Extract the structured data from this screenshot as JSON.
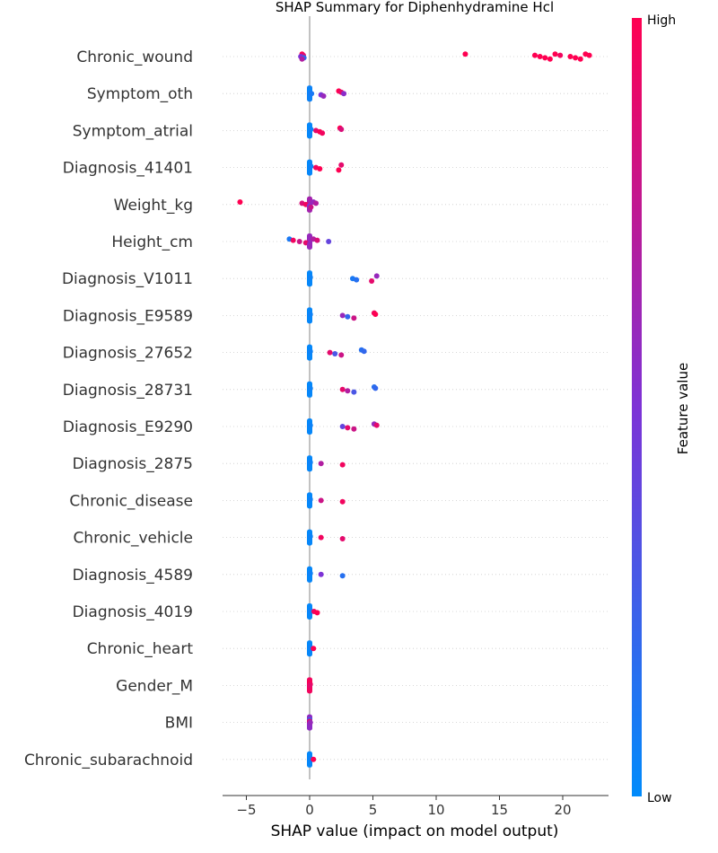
{
  "chart_data": {
    "type": "scatter",
    "subtype": "shap-beeswarm",
    "title": "SHAP Summary for Diphenhydramine Hcl",
    "xlabel": "SHAP value (impact on model output)",
    "xlim": [
      -7,
      23.5
    ],
    "xticks": [
      -5,
      0,
      5,
      10,
      15,
      20
    ],
    "xtick_labels": [
      "−5",
      "0",
      "5",
      "10",
      "15",
      "20"
    ],
    "colorbar": {
      "label": "Feature value",
      "high": "High",
      "low": "Low",
      "low_color": "#008bfb",
      "mid_color": "#7d32d6",
      "high_color": "#ff0051"
    },
    "grid": "dotted horizontal per feature",
    "features": [
      {
        "name": "Chronic_wound",
        "points": [
          [
            -0.6,
            1
          ],
          [
            -0.5,
            0.9
          ],
          [
            -0.7,
            0.5
          ],
          [
            -0.45,
            0.2
          ],
          [
            -0.6,
            0.7
          ],
          [
            12.3,
            1
          ],
          [
            17.8,
            1
          ],
          [
            18.2,
            1
          ],
          [
            18.6,
            1
          ],
          [
            19.0,
            1
          ],
          [
            19.4,
            1
          ],
          [
            19.8,
            0.95
          ],
          [
            20.6,
            1
          ],
          [
            21.0,
            1
          ],
          [
            21.4,
            1
          ],
          [
            21.8,
            1
          ],
          [
            22.1,
            1
          ]
        ]
      },
      {
        "name": "Symptom_oth",
        "points": [
          [
            0,
            0
          ],
          [
            0,
            0.05
          ],
          [
            0.15,
            0.1
          ],
          [
            0.9,
            0.5
          ],
          [
            1.1,
            0.6
          ],
          [
            2.3,
            1
          ],
          [
            2.5,
            0.9
          ],
          [
            2.7,
            0.55
          ]
        ]
      },
      {
        "name": "Symptom_atrial",
        "points": [
          [
            0,
            0
          ],
          [
            0.1,
            0.05
          ],
          [
            0.5,
            0.9
          ],
          [
            0.8,
            1
          ],
          [
            1.0,
            0.95
          ],
          [
            2.4,
            1
          ],
          [
            2.5,
            0.85
          ]
        ]
      },
      {
        "name": "Diagnosis_41401",
        "points": [
          [
            0,
            0
          ],
          [
            0.1,
            0.05
          ],
          [
            0.5,
            0.95
          ],
          [
            0.8,
            1
          ],
          [
            2.3,
            1
          ],
          [
            2.5,
            0.9
          ]
        ]
      },
      {
        "name": "Weight_kg",
        "points": [
          [
            -5.5,
            1
          ],
          [
            -0.6,
            0.85
          ],
          [
            -0.3,
            0.95
          ],
          [
            0,
            0.5
          ],
          [
            0.1,
            0.8
          ],
          [
            0.3,
            0.6
          ],
          [
            0.5,
            0.7
          ]
        ]
      },
      {
        "name": "Height_cm",
        "points": [
          [
            -1.6,
            0.1
          ],
          [
            -1.3,
            0.95
          ],
          [
            -0.8,
            0.8
          ],
          [
            -0.3,
            0.9
          ],
          [
            0,
            0.6
          ],
          [
            0.3,
            0.7
          ],
          [
            0.6,
            0.85
          ],
          [
            1.5,
            0.4
          ]
        ]
      },
      {
        "name": "Diagnosis_V1011",
        "points": [
          [
            0,
            0
          ],
          [
            0.05,
            0.05
          ],
          [
            3.4,
            0.1
          ],
          [
            3.7,
            0.15
          ],
          [
            4.9,
            0.9
          ],
          [
            5.3,
            0.6
          ]
        ]
      },
      {
        "name": "Diagnosis_E9589",
        "points": [
          [
            0,
            0
          ],
          [
            0.05,
            0.05
          ],
          [
            2.6,
            0.6
          ],
          [
            3.0,
            0.2
          ],
          [
            3.5,
            0.8
          ],
          [
            5.1,
            0.95
          ],
          [
            5.2,
            1
          ]
        ]
      },
      {
        "name": "Diagnosis_27652",
        "points": [
          [
            0,
            0
          ],
          [
            0.05,
            0.05
          ],
          [
            1.6,
            0.9
          ],
          [
            2.0,
            0.3
          ],
          [
            2.5,
            0.8
          ],
          [
            4.1,
            0.15
          ],
          [
            4.3,
            0.2
          ]
        ]
      },
      {
        "name": "Diagnosis_28731",
        "points": [
          [
            0,
            0
          ],
          [
            0.05,
            0.05
          ],
          [
            2.6,
            0.9
          ],
          [
            3.0,
            0.7
          ],
          [
            3.5,
            0.3
          ],
          [
            5.1,
            0.15
          ],
          [
            5.2,
            0.2
          ]
        ]
      },
      {
        "name": "Diagnosis_E9290",
        "points": [
          [
            0,
            0
          ],
          [
            0.05,
            0.05
          ],
          [
            2.6,
            0.4
          ],
          [
            3.0,
            0.9
          ],
          [
            3.5,
            0.8
          ],
          [
            5.1,
            0.6
          ],
          [
            5.3,
            0.9
          ]
        ]
      },
      {
        "name": "Diagnosis_2875",
        "points": [
          [
            0,
            0
          ],
          [
            0.05,
            0.05
          ],
          [
            0.9,
            0.7
          ],
          [
            2.6,
            0.95
          ]
        ]
      },
      {
        "name": "Chronic_disease",
        "points": [
          [
            0,
            0
          ],
          [
            0.05,
            0.05
          ],
          [
            0.9,
            0.8
          ],
          [
            2.6,
            0.95
          ]
        ]
      },
      {
        "name": "Chronic_vehicle",
        "points": [
          [
            0,
            0
          ],
          [
            0.05,
            0.05
          ],
          [
            0.9,
            0.95
          ],
          [
            2.6,
            0.9
          ]
        ]
      },
      {
        "name": "Diagnosis_4589",
        "points": [
          [
            0,
            0
          ],
          [
            0.05,
            0.05
          ],
          [
            0.9,
            0.5
          ],
          [
            2.6,
            0.15
          ]
        ]
      },
      {
        "name": "Diagnosis_4019",
        "points": [
          [
            0,
            0
          ],
          [
            0.05,
            0.05
          ],
          [
            0.35,
            0.95
          ],
          [
            0.6,
            1
          ]
        ]
      },
      {
        "name": "Chronic_heart",
        "points": [
          [
            0,
            0
          ],
          [
            0.05,
            0.05
          ],
          [
            0.3,
            1
          ]
        ]
      },
      {
        "name": "Gender_M",
        "points": [
          [
            0,
            1
          ],
          [
            0.05,
            0.95
          ],
          [
            0,
            0.9
          ]
        ]
      },
      {
        "name": "BMI",
        "points": [
          [
            0,
            0.2
          ],
          [
            0,
            0.9
          ],
          [
            0.05,
            0.6
          ]
        ]
      },
      {
        "name": "Chronic_subarachnoid",
        "points": [
          [
            0,
            0
          ],
          [
            0.05,
            0.05
          ],
          [
            0.3,
            1
          ]
        ]
      }
    ]
  }
}
